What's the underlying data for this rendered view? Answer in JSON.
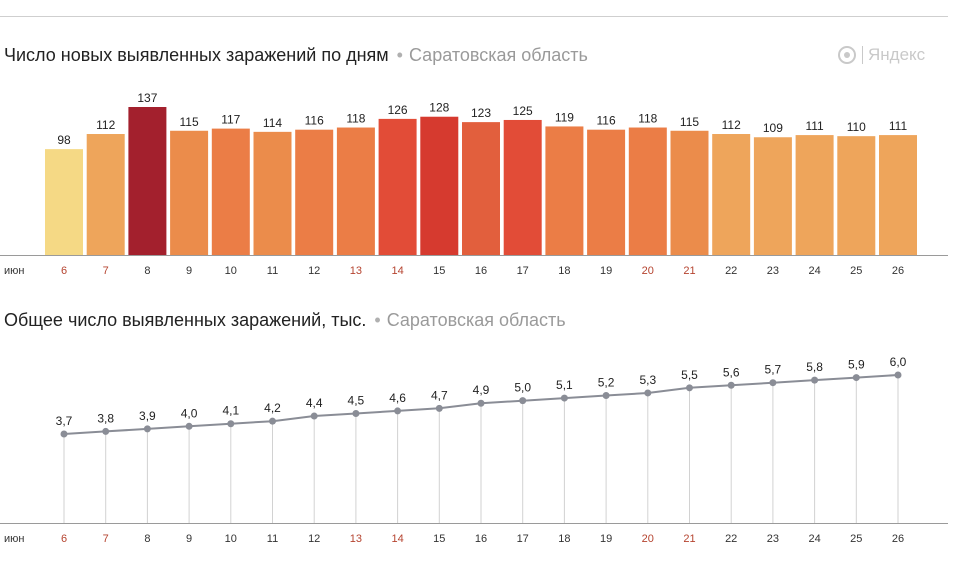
{
  "header": {
    "logo_text": "Яндекс"
  },
  "chart_data": [
    {
      "type": "bar",
      "title": "Число новых выявленных заражений по дням",
      "subtitle": "Саратовская область",
      "month_label": "июн",
      "categories": [
        "6",
        "7",
        "8",
        "9",
        "10",
        "11",
        "12",
        "13",
        "14",
        "15",
        "16",
        "17",
        "18",
        "19",
        "20",
        "21",
        "22",
        "23",
        "24",
        "25",
        "26"
      ],
      "weekend_categories": [
        "6",
        "7",
        "13",
        "14",
        "20",
        "21"
      ],
      "values": [
        98,
        112,
        137,
        115,
        117,
        114,
        116,
        118,
        126,
        128,
        123,
        125,
        119,
        116,
        118,
        115,
        112,
        109,
        111,
        110,
        111
      ],
      "bar_colors": [
        "#f5d985",
        "#eea55b",
        "#a3202d",
        "#eb8c4b",
        "#eb7d46",
        "#eb8c4b",
        "#eb7d46",
        "#eb7d46",
        "#e24c37",
        "#d63a2f",
        "#e25f3d",
        "#e24c37",
        "#eb7d46",
        "#eb7d46",
        "#eb7d46",
        "#eb8c4b",
        "#eea55b",
        "#eea55b",
        "#eea55b",
        "#eea55b",
        "#eea55b"
      ],
      "ylim": [
        0,
        137
      ],
      "weekend_label_color": "#b5432f",
      "label_color": "#333333"
    },
    {
      "type": "line",
      "title": "Общее число выявленных заражений, тыс.",
      "subtitle": "Саратовская область",
      "month_label": "июн",
      "categories": [
        "6",
        "7",
        "8",
        "9",
        "10",
        "11",
        "12",
        "13",
        "14",
        "15",
        "16",
        "17",
        "18",
        "19",
        "20",
        "21",
        "22",
        "23",
        "24",
        "25",
        "26"
      ],
      "weekend_categories": [
        "6",
        "7",
        "13",
        "14",
        "20",
        "21"
      ],
      "values": [
        3.7,
        3.8,
        3.9,
        4.0,
        4.1,
        4.2,
        4.4,
        4.5,
        4.6,
        4.7,
        4.9,
        5.0,
        5.1,
        5.2,
        5.3,
        5.5,
        5.6,
        5.7,
        5.8,
        5.9,
        6.0
      ],
      "value_labels": [
        "3,7",
        "3,8",
        "3,9",
        "4,0",
        "4,1",
        "4,2",
        "4,4",
        "4,5",
        "4,6",
        "4,7",
        "4,9",
        "5,0",
        "5,1",
        "5,2",
        "5,3",
        "5,5",
        "5,6",
        "5,7",
        "5,8",
        "5,9",
        "6,0"
      ],
      "ylim": [
        0,
        6.0
      ],
      "line_color": "#8a8d96",
      "grid": true
    }
  ]
}
